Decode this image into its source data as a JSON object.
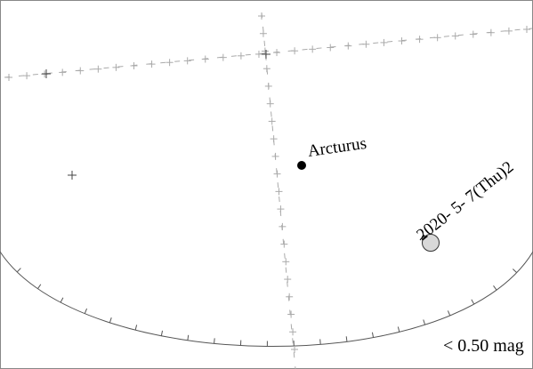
{
  "stars": [
    {
      "name": "Arcturus"
    }
  ],
  "object_label": "2020- 5- 7(Thu)2",
  "magnitude_limit": "< 0.50 mag",
  "colors": {
    "background": "#ffffff",
    "frame": "#888888",
    "horizon": "#555555",
    "grid": "#999999",
    "star": "#000000",
    "object_fill": "#d8d8d8",
    "object_stroke": "#333333"
  }
}
